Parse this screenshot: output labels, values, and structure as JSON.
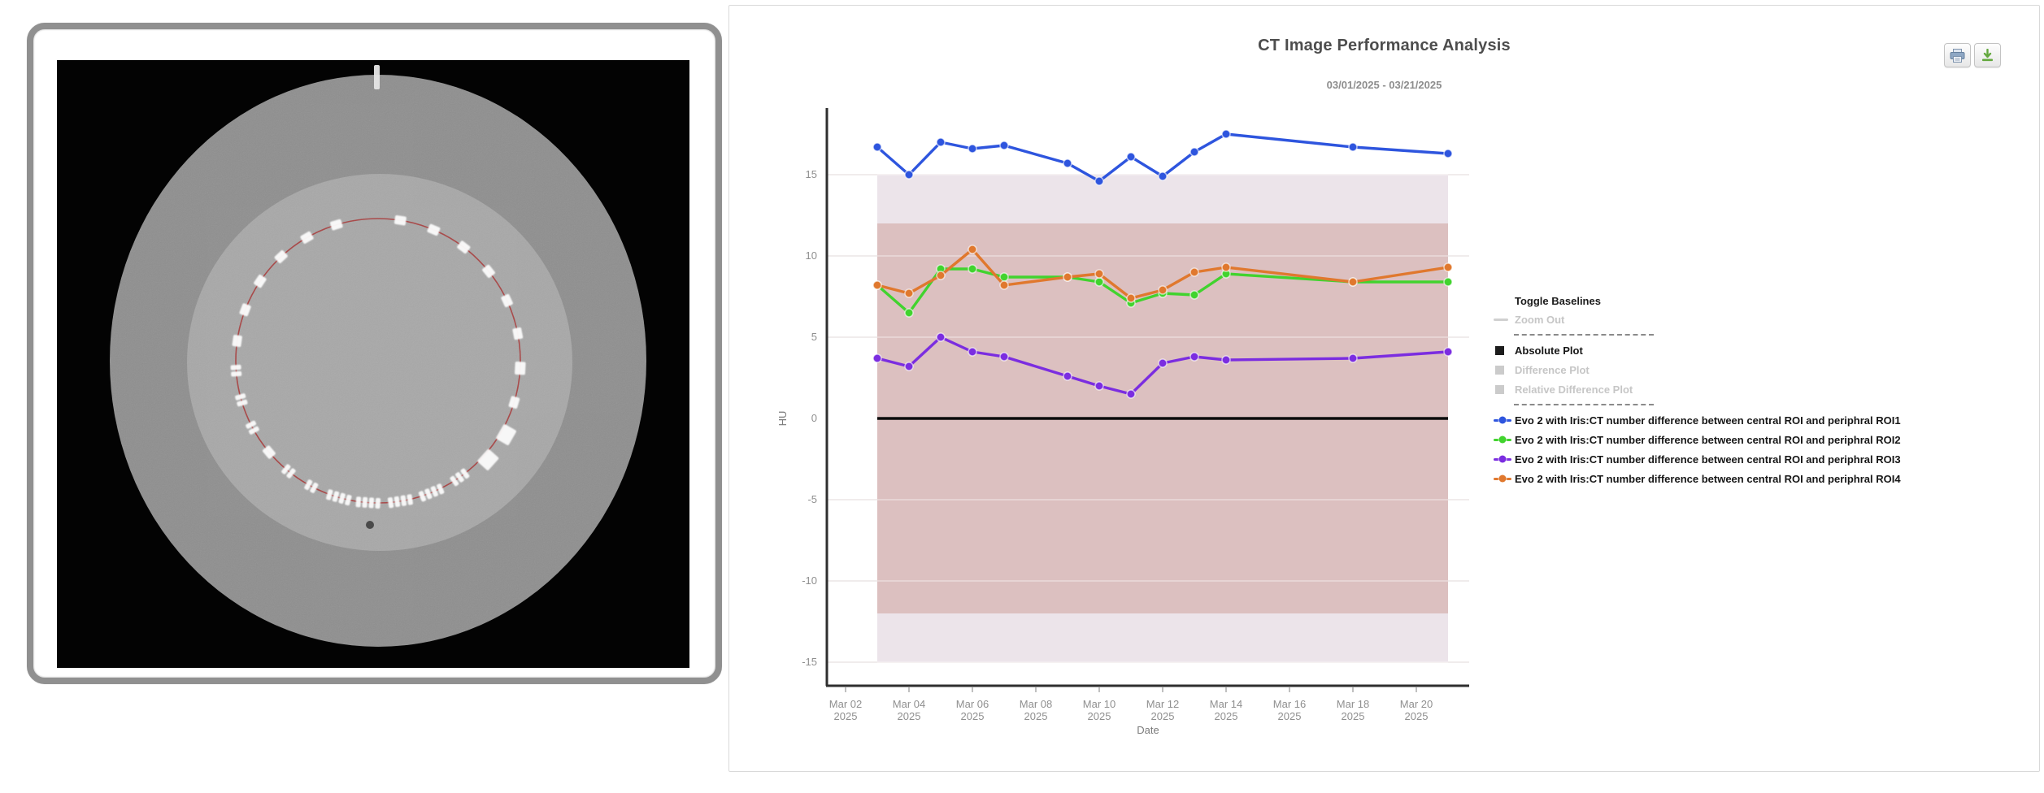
{
  "left_panel": {
    "description": "ct-phantom-axial-scan"
  },
  "chart": {
    "title": "CT Image Performance Analysis",
    "subtitle": "03/01/2025 - 03/21/2025",
    "toolbar": {
      "print_icon": "printer-icon",
      "download_icon": "download-icon"
    },
    "legend": {
      "toggle_title": "Toggle Baselines",
      "zoom_out": "Zoom Out",
      "plots": [
        {
          "label": "Absolute Plot",
          "active": true
        },
        {
          "label": "Difference Plot",
          "active": false
        },
        {
          "label": "Relative Difference Plot",
          "active": false
        }
      ]
    },
    "chart_data": {
      "type": "line",
      "title": "CT Image Performance Analysis",
      "subtitle": "03/01/2025 - 03/21/2025",
      "xlabel": "Date",
      "ylabel": "HU",
      "grid": "horizontal",
      "legend_position": "right",
      "ylim": [
        -16.5,
        19.1
      ],
      "yticks": [
        15,
        10,
        5,
        0,
        -5,
        -10,
        -15
      ],
      "xticks": [
        [
          "Mar 02",
          "2025"
        ],
        [
          "Mar 04",
          "2025"
        ],
        [
          "Mar 06",
          "2025"
        ],
        [
          "Mar 08",
          "2025"
        ],
        [
          "Mar 10",
          "2025"
        ],
        [
          "Mar 12",
          "2025"
        ],
        [
          "Mar 14",
          "2025"
        ],
        [
          "Mar 16",
          "2025"
        ],
        [
          "Mar 18",
          "2025"
        ],
        [
          "Mar 20",
          "2025"
        ]
      ],
      "baseline_zero": 0,
      "tolerance_bands": {
        "inner": [
          -12,
          12
        ],
        "outer": [
          -15,
          15
        ]
      },
      "band_colors": {
        "inner": "#DCC0C0",
        "outer": "#ECE4EA"
      },
      "x_dates": [
        "03/03/2025",
        "03/04/2025",
        "03/05/2025",
        "03/06/2025",
        "03/07/2025",
        "03/09/2025",
        "03/10/2025",
        "03/11/2025",
        "03/12/2025",
        "03/13/2025",
        "03/14/2025",
        "03/18/2025",
        "03/21/2025"
      ],
      "series": [
        {
          "name": "Evo 2 with Iris:CT number difference between central ROI and periphral ROI1",
          "color": "#2E55DE",
          "values": [
            16.7,
            15.0,
            17.0,
            16.6,
            16.8,
            15.7,
            14.6,
            16.1,
            14.9,
            16.4,
            17.5,
            16.7,
            16.3
          ]
        },
        {
          "name": "Evo 2 with Iris:CT number difference between central ROI and periphral ROI2",
          "color": "#41D32E",
          "values": [
            8.2,
            6.5,
            9.2,
            9.2,
            8.7,
            8.7,
            8.4,
            7.1,
            7.7,
            7.6,
            8.9,
            8.4,
            8.4
          ]
        },
        {
          "name": "Evo 2 with Iris:CT number difference between central ROI and periphral ROI3",
          "color": "#7B2DE0",
          "values": [
            3.7,
            3.2,
            5.0,
            4.1,
            3.8,
            2.6,
            2.0,
            1.5,
            3.4,
            3.8,
            3.6,
            3.7,
            4.1
          ]
        },
        {
          "name": "Evo 2 with Iris:CT number difference between central ROI and periphral ROI4",
          "color": "#E0782E",
          "values": [
            8.2,
            7.7,
            8.8,
            10.4,
            8.2,
            8.7,
            8.9,
            7.4,
            7.9,
            9.0,
            9.3,
            8.4,
            9.3
          ]
        }
      ]
    }
  }
}
